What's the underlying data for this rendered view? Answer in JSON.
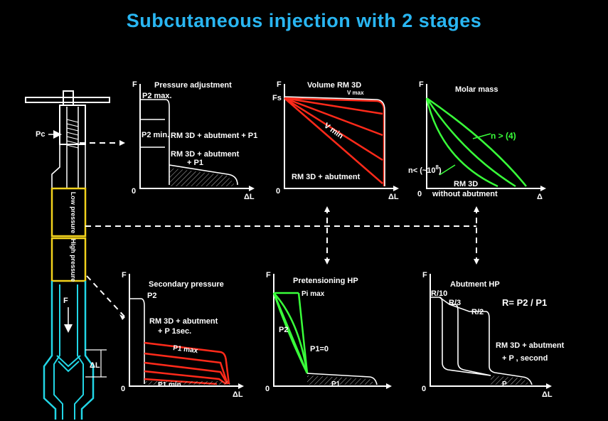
{
  "title": "Subcutaneous  injection with 2 stages",
  "device": {
    "pc_label": "Pc",
    "low_label": "Low pressure",
    "high_label": "High pressure",
    "f_label": "F",
    "dl_label": "ΔL"
  },
  "panels": {
    "p1": {
      "title": "Pressure adjustment",
      "axis_y": "F",
      "origin": "0",
      "axis_x": "ΔL",
      "labels": [
        "P2 max.",
        "P2 min.",
        "RM 3D + abutment + P1",
        "RM 3D + abutment",
        "+ P1"
      ]
    },
    "p2": {
      "title": "Volume RM 3D",
      "axis_y": "F",
      "origin": "0",
      "axis_x": "ΔL",
      "fs": "Fs",
      "vmax": "V max",
      "vmin": "V min",
      "bottom": "RM 3D + abutment"
    },
    "p3": {
      "title": "Molar mass",
      "axis_y": "F",
      "origin": "0",
      "axis_x": "Δ",
      "n_gt": "n > (4)",
      "n_lt": "n< (~10",
      "n_lt_exp": "8",
      "n_lt_close": ")",
      "rm": "RM 3D",
      "without": "without abutment"
    },
    "p4": {
      "title": "Secondary pressure",
      "axis_y": "F",
      "origin": "0",
      "axis_x": "ΔL",
      "p2": "P2",
      "rm1": "RM 3D + abutment",
      "rm2": "+ P 1sec.",
      "p1max": "P1 max",
      "p1min": "P1 min"
    },
    "p5": {
      "title": "Pretensioning HP",
      "axis_y": "F",
      "origin": "0",
      "pimax": "Pi max",
      "p2": "P2",
      "p1zero": "P1=0",
      "p1": "P1"
    },
    "p6": {
      "title": "Abutment HP",
      "axis_y": "F",
      "origin": "0",
      "axis_x": "ΔL",
      "formula": "R= P2 / P1",
      "r10": "R/10",
      "r3": "R/3",
      "r2": "R/2",
      "rm1": "RM 3D + abutment",
      "rm2": "+ P , second",
      "p": "P"
    }
  },
  "colors": {
    "title": "#29b6f2",
    "red": "#ff2a1a",
    "green": "#39ff3a",
    "yellow": "#f2d21c",
    "cyan": "#22d6e6"
  }
}
